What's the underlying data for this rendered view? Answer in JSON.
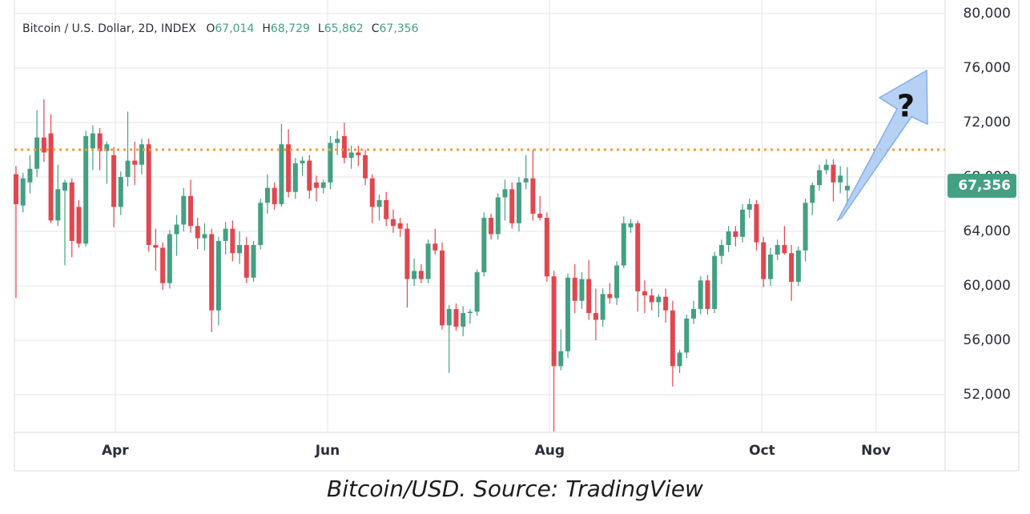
{
  "chart_data": {
    "type": "candlestick",
    "legend": {
      "text": "Bitcoin / U.S. Dollar, 2D, INDEX",
      "values": [
        {
          "key": "O",
          "label": "67,014"
        },
        {
          "key": "H",
          "label": "68,729"
        },
        {
          "key": "L",
          "label": "65,862"
        },
        {
          "key": "C",
          "label": "67,356"
        }
      ]
    },
    "open": [
      68200,
      65900,
      67600,
      68600,
      70900,
      71200,
      64800,
      67000,
      67600,
      65800,
      63100,
      70100,
      71200,
      69900,
      69600,
      65800,
      68000,
      69200,
      68900,
      70400,
      63000,
      62800,
      60200,
      63800,
      64500,
      66600,
      64400,
      63500,
      63800,
      58200,
      63300,
      64200,
      62400,
      63000,
      60600,
      63000,
      66100,
      67200,
      66000,
      70400,
      66900,
      69000,
      69200,
      67600,
      67200,
      67600,
      70500,
      71000,
      69400,
      69800,
      69600,
      67900,
      65800,
      66300,
      64900,
      64600,
      64200,
      60500,
      61100,
      60500,
      63100,
      62600,
      57100,
      58300,
      57000,
      58000,
      58100,
      61000,
      65000,
      63800,
      66500,
      67100,
      64600,
      67600,
      67900,
      65300,
      65000,
      60700,
      54100,
      55200,
      60600,
      58900,
      60500,
      58000,
      57500,
      59400,
      59100,
      61500,
      64300,
      64600,
      59600,
      59300,
      58800,
      59200,
      58200,
      54100,
      55100,
      57600,
      58300,
      60400,
      58300,
      62200,
      63000,
      64000,
      63600,
      65600,
      66000,
      63200,
      60500,
      62300,
      63000,
      62400,
      60300,
      62600,
      66100,
      67400,
      68500,
      68900,
      67600,
      67014
    ],
    "high": [
      68800,
      68300,
      69600,
      72900,
      73700,
      72600,
      68900,
      67800,
      67900,
      66300,
      71400,
      71800,
      71600,
      70600,
      70200,
      68400,
      72800,
      70600,
      70800,
      70800,
      64200,
      63200,
      64100,
      65200,
      67200,
      67800,
      65000,
      64600,
      64200,
      63600,
      64700,
      64800,
      64000,
      63600,
      63300,
      66400,
      68200,
      67600,
      71900,
      71500,
      69400,
      69500,
      69600,
      68100,
      67800,
      71000,
      71400,
      72000,
      70300,
      70300,
      70000,
      68200,
      66700,
      66900,
      65600,
      65000,
      64600,
      62000,
      61600,
      63400,
      64200,
      63200,
      58600,
      58700,
      58500,
      58300,
      61200,
      65400,
      65300,
      66800,
      67800,
      67600,
      68000,
      69600,
      70000,
      66600,
      65400,
      61100,
      56800,
      60900,
      61600,
      61000,
      61900,
      59800,
      59800,
      60200,
      61800,
      65100,
      64900,
      64800,
      60400,
      59800,
      59400,
      59800,
      58900,
      55300,
      57900,
      58900,
      60700,
      60800,
      62500,
      63400,
      64400,
      64400,
      66000,
      66400,
      66300,
      63600,
      62800,
      63400,
      64400,
      63000,
      62900,
      66400,
      67600,
      68900,
      69300,
      69300,
      68800,
      68729
    ],
    "low": [
      59100,
      65400,
      66800,
      68000,
      69100,
      64600,
      64400,
      61500,
      62100,
      62800,
      62900,
      68500,
      68500,
      67500,
      64300,
      65200,
      67300,
      67400,
      68200,
      62500,
      61100,
      59700,
      59800,
      62200,
      64000,
      63900,
      62700,
      62600,
      56600,
      57100,
      62300,
      61800,
      61600,
      60200,
      60300,
      62700,
      65300,
      65600,
      65800,
      66500,
      66400,
      68100,
      66400,
      66200,
      66800,
      67100,
      69600,
      69000,
      68600,
      68800,
      67400,
      64600,
      64800,
      64400,
      63900,
      63600,
      58400,
      60000,
      60200,
      60200,
      62300,
      56800,
      53600,
      56700,
      56300,
      57200,
      57800,
      60700,
      63400,
      63400,
      64800,
      64200,
      64000,
      67100,
      64800,
      64800,
      60300,
      49300,
      53800,
      54700,
      58000,
      58300,
      57500,
      56000,
      57000,
      58700,
      58600,
      61300,
      63900,
      58100,
      58000,
      58200,
      57700,
      57300,
      52600,
      53600,
      54700,
      57200,
      57900,
      57900,
      58000,
      61600,
      62500,
      62900,
      63200,
      65000,
      62600,
      59900,
      60000,
      61900,
      62300,
      58900,
      60000,
      61800,
      65200,
      67000,
      68200,
      66200,
      66800,
      65862
    ],
    "close": [
      66000,
      67900,
      68600,
      70900,
      69800,
      64800,
      67100,
      67600,
      63300,
      63100,
      71000,
      71200,
      69900,
      70400,
      65800,
      68000,
      69200,
      68900,
      70400,
      63000,
      62800,
      60200,
      63800,
      64500,
      66600,
      64400,
      63500,
      63800,
      58200,
      63300,
      64200,
      62400,
      63000,
      60600,
      63000,
      66100,
      67200,
      66000,
      70400,
      66900,
      69000,
      69200,
      67000,
      67200,
      67600,
      70500,
      70800,
      69400,
      69800,
      69600,
      67900,
      65800,
      66300,
      64900,
      64400,
      64200,
      60500,
      61100,
      60500,
      63100,
      62600,
      57100,
      58300,
      57000,
      58000,
      58100,
      61000,
      65000,
      63800,
      66500,
      67100,
      64600,
      67600,
      67900,
      65300,
      65000,
      60700,
      54100,
      55200,
      60600,
      58900,
      60500,
      58000,
      57500,
      59400,
      59100,
      61500,
      64600,
      64600,
      59600,
      59300,
      58800,
      59200,
      58200,
      54100,
      55100,
      57600,
      58300,
      60400,
      58300,
      62200,
      63000,
      64000,
      63600,
      65600,
      66000,
      63200,
      60500,
      62300,
      63000,
      62400,
      60300,
      62600,
      66100,
      67400,
      68500,
      68900,
      67600,
      68100,
      67356
    ],
    "up_color": "#44a082",
    "down_color": "#e0474f",
    "xlim": [
      -2.29,
      133.0
    ],
    "xticks": [
      {
        "value": 14.2,
        "label": "Apr"
      },
      {
        "value": 44.6,
        "label": "Jun"
      },
      {
        "value": 76.4,
        "label": "Aug"
      },
      {
        "value": 106.8,
        "label": "Oct"
      },
      {
        "value": 123.1,
        "label": "Nov"
      }
    ],
    "ylim": [
      49240,
      81000
    ],
    "yticks": [
      {
        "value": 52000,
        "label": "52,000"
      },
      {
        "value": 56000,
        "label": "56,000"
      },
      {
        "value": 60000,
        "label": "60,000"
      },
      {
        "value": 64000,
        "label": "64,000"
      },
      {
        "value": 68000,
        "label": "68,000"
      },
      {
        "value": 72000,
        "label": "72,000"
      },
      {
        "value": 76000,
        "label": "76,000"
      },
      {
        "value": 80000,
        "label": "80,000"
      }
    ],
    "grid": true,
    "reference_line": {
      "value": 70000,
      "color": "#f0a030"
    },
    "last_price_label": "67,356",
    "annotation": "?"
  },
  "caption": "Bitcoin/USD. Source: TradingView"
}
